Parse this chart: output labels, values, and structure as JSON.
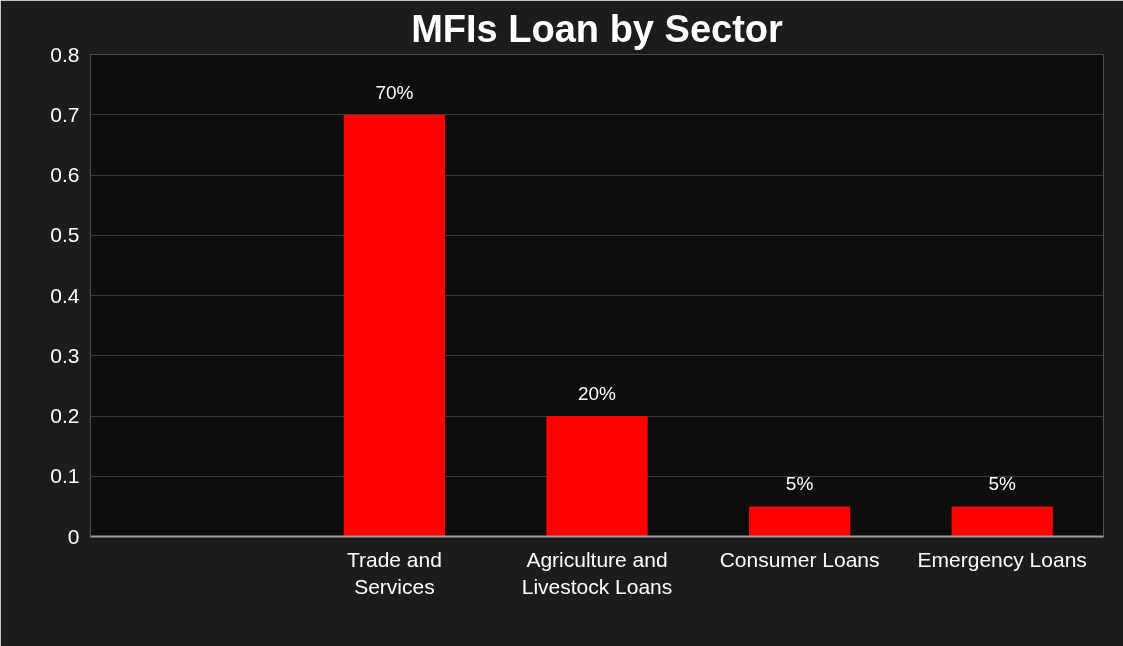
{
  "chart_data": {
    "type": "bar",
    "title": "MFIs Loan by Sector",
    "categories": [
      null,
      "Trade and Services",
      "Agriculture and Livestock Loans",
      "Consumer Loans",
      "Emergency Loans"
    ],
    "values": [
      null,
      0.7,
      0.2,
      0.05,
      0.05
    ],
    "value_labels": [
      null,
      "70%",
      "20%",
      "5%",
      "5%"
    ],
    "color": "#ff0000",
    "ylim": [
      0,
      0.8
    ],
    "yticks": [
      0,
      0.1,
      0.2,
      0.3,
      0.4,
      0.5,
      0.6,
      0.7,
      0.8
    ],
    "grid": "y"
  }
}
